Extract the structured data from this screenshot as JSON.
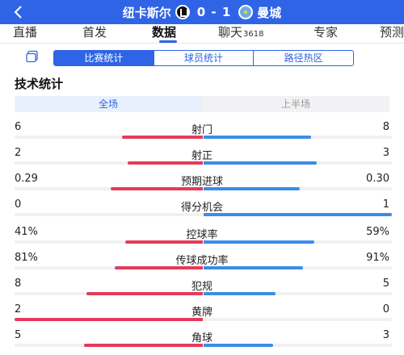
{
  "header": {
    "home_team": "纽卡斯尔",
    "score": "0 - 1",
    "away_team": "曼城",
    "home_crest_icon": "newcastle-crest-icon",
    "away_crest_icon": "mancity-crest-icon"
  },
  "tabs": [
    {
      "label": "直播",
      "count": ""
    },
    {
      "label": "首发",
      "count": ""
    },
    {
      "label": "数据",
      "count": "",
      "active": true
    },
    {
      "label": "聊天",
      "count": "3618"
    },
    {
      "label": "专家",
      "count": ""
    },
    {
      "label": "预测",
      "count": ""
    }
  ],
  "segments": [
    "比赛统计",
    "球员统计",
    "路径热区"
  ],
  "section_title": "技术统计",
  "period": [
    "全场",
    "上半场"
  ],
  "colors": {
    "accent": "#2f64e6",
    "home": "#e23c5b",
    "away": "#3a8de8"
  },
  "stats": [
    {
      "label": "射门",
      "home": "6",
      "away": "8",
      "home_share": 0.43,
      "away_share": 0.57
    },
    {
      "label": "射正",
      "home": "2",
      "away": "3",
      "home_share": 0.4,
      "away_share": 0.6
    },
    {
      "label": "预期进球",
      "home": "0.29",
      "away": "0.30",
      "home_share": 0.49,
      "away_share": 0.51
    },
    {
      "label": "得分机会",
      "home": "0",
      "away": "1",
      "home_share": 0.0,
      "away_share": 1.0
    },
    {
      "label": "控球率",
      "home": "41%",
      "away": "59%",
      "home_share": 0.41,
      "away_share": 0.59
    },
    {
      "label": "传球成功率",
      "home": "81%",
      "away": "91%",
      "home_share": 0.47,
      "away_share": 0.53
    },
    {
      "label": "犯规",
      "home": "8",
      "away": "5",
      "home_share": 0.62,
      "away_share": 0.38
    },
    {
      "label": "黄牌",
      "home": "2",
      "away": "0",
      "home_share": 1.0,
      "away_share": 0.0
    },
    {
      "label": "角球",
      "home": "5",
      "away": "3",
      "home_share": 0.63,
      "away_share": 0.37
    }
  ]
}
